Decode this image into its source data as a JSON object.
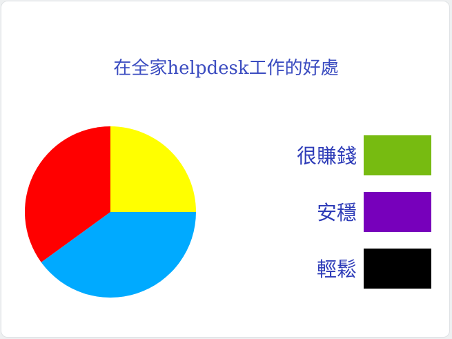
{
  "chart_data": {
    "type": "pie",
    "title": "在全家helpdesk工作的好處",
    "slices": [
      {
        "label": "",
        "value": 25,
        "color": "#ffff00"
      },
      {
        "label": "",
        "value": 40,
        "color": "#00aaff"
      },
      {
        "label": "",
        "value": 35,
        "color": "#ff0000"
      }
    ],
    "legend": [
      {
        "label": "很賺錢",
        "color": "#77bb11"
      },
      {
        "label": "安穩",
        "color": "#7700bb"
      },
      {
        "label": "輕鬆",
        "color": "#000000"
      }
    ]
  }
}
